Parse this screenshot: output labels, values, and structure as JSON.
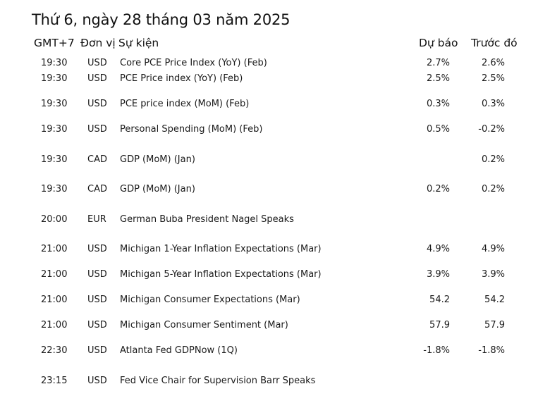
{
  "title": "Thứ 6, ngày 28 tháng 03 năm 2025",
  "columns": {
    "timezone": "GMT+7",
    "unit": "Đơn vị",
    "event": "Sự kiện",
    "forecast": "Dự báo",
    "previous": "Trước đó"
  },
  "rows": [
    {
      "time": "19:30",
      "currency": "USD",
      "event": "Core PCE Price Index (YoY) (Feb)",
      "forecast": "2.7%",
      "previous": "2.6%"
    },
    {
      "time": "19:30",
      "currency": "USD",
      "event": "PCE Price index (YoY) (Feb)",
      "forecast": "2.5%",
      "previous": "2.5%"
    },
    {
      "time": "19:30",
      "currency": "USD",
      "event": "PCE price index (MoM) (Feb)",
      "forecast": "0.3%",
      "previous": "0.3%"
    },
    {
      "time": "19:30",
      "currency": "USD",
      "event": "Personal Spending (MoM) (Feb)",
      "forecast": "0.5%",
      "previous": "-0.2%"
    },
    {
      "time": "19:30",
      "currency": "CAD",
      "event": "GDP (MoM) (Jan)",
      "forecast": "",
      "previous": "0.2%"
    },
    {
      "time": "19:30",
      "currency": "CAD",
      "event": "GDP (MoM) (Jan)",
      "forecast": "0.2%",
      "previous": "0.2%"
    },
    {
      "time": "20:00",
      "currency": "EUR",
      "event": "German Buba President Nagel Speaks",
      "forecast": "",
      "previous": ""
    },
    {
      "time": "21:00",
      "currency": "USD",
      "event": "Michigan 1-Year Inflation Expectations (Mar)",
      "forecast": "4.9%",
      "previous": "4.9%"
    },
    {
      "time": "21:00",
      "currency": "USD",
      "event": "Michigan 5-Year Inflation Expectations (Mar)",
      "forecast": "3.9%",
      "previous": "3.9%"
    },
    {
      "time": "21:00",
      "currency": "USD",
      "event": "Michigan Consumer Expectations (Mar)",
      "forecast": "54.2",
      "previous": "54.2"
    },
    {
      "time": "21:00",
      "currency": "USD",
      "event": "Michigan Consumer Sentiment (Mar)",
      "forecast": "57.9",
      "previous": "57.9"
    },
    {
      "time": "22:30",
      "currency": "USD",
      "event": "Atlanta Fed GDPNow (1Q)",
      "forecast": "-1.8%",
      "previous": "-1.8%"
    },
    {
      "time": "23:15",
      "currency": "USD",
      "event": "Fed Vice Chair for Supervision Barr Speaks",
      "forecast": "",
      "previous": ""
    }
  ]
}
